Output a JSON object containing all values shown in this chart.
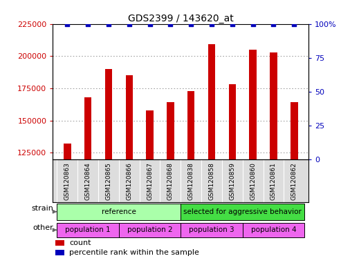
{
  "title": "GDS2399 / 143620_at",
  "samples": [
    "GSM120863",
    "GSM120864",
    "GSM120865",
    "GSM120866",
    "GSM120867",
    "GSM120868",
    "GSM120838",
    "GSM120858",
    "GSM120859",
    "GSM120860",
    "GSM120861",
    "GSM120862"
  ],
  "counts": [
    132000,
    168000,
    190000,
    185000,
    158000,
    164000,
    173000,
    209000,
    178000,
    205000,
    203000,
    164000
  ],
  "percentile_ranks": [
    100,
    100,
    100,
    100,
    100,
    100,
    100,
    100,
    100,
    100,
    100,
    100
  ],
  "ylim_left": [
    120000,
    225000
  ],
  "ylim_right": [
    0,
    100
  ],
  "yticks_left": [
    125000,
    150000,
    175000,
    200000,
    225000
  ],
  "yticks_right": [
    0,
    25,
    50,
    75,
    100
  ],
  "bar_color": "#cc0000",
  "dot_color": "#0000bb",
  "strain_groups": [
    {
      "label": "reference",
      "start": 0,
      "end": 6,
      "color": "#aaffaa"
    },
    {
      "label": "selected for aggressive behavior",
      "start": 6,
      "end": 12,
      "color": "#44dd44"
    }
  ],
  "other_groups": [
    {
      "label": "population 1",
      "start": 0,
      "end": 3,
      "color": "#ee66ee"
    },
    {
      "label": "population 2",
      "start": 3,
      "end": 6,
      "color": "#ee66ee"
    },
    {
      "label": "population 3",
      "start": 6,
      "end": 9,
      "color": "#ee66ee"
    },
    {
      "label": "population 4",
      "start": 9,
      "end": 12,
      "color": "#ee66ee"
    }
  ],
  "legend_count_color": "#cc0000",
  "legend_percentile_color": "#0000bb",
  "grid_color": "#888888",
  "xtick_bg": "#dddddd"
}
